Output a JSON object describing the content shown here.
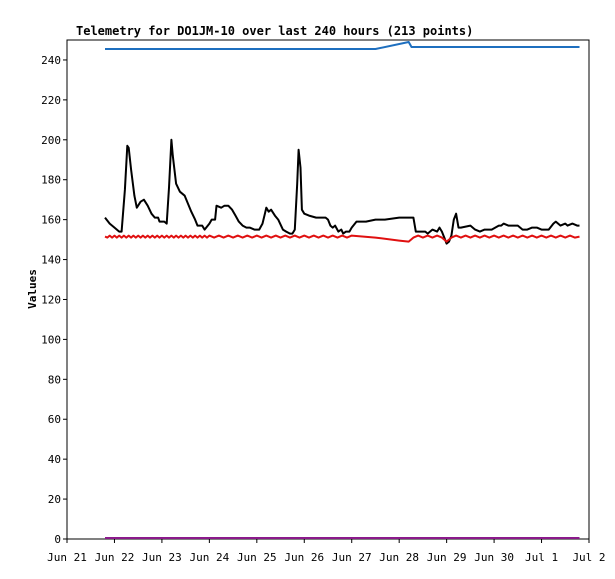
{
  "chart_data": {
    "type": "line",
    "title": "Telemetry for DO1JM-10 over last 240 hours (213 points)",
    "ylabel": "Values",
    "xlabel": "",
    "ylim": [
      0,
      250
    ],
    "xlim": [
      0,
      11
    ],
    "x_ticks": [
      {
        "x": 0,
        "label": "Jun 21"
      },
      {
        "x": 1,
        "label": "Jun 22"
      },
      {
        "x": 2,
        "label": "Jun 23"
      },
      {
        "x": 3,
        "label": "Jun 24"
      },
      {
        "x": 4,
        "label": "Jun 25"
      },
      {
        "x": 5,
        "label": "Jun 26"
      },
      {
        "x": 6,
        "label": "Jun 27"
      },
      {
        "x": 7,
        "label": "Jun 28"
      },
      {
        "x": 8,
        "label": "Jun 29"
      },
      {
        "x": 9,
        "label": "Jun 30"
      },
      {
        "x": 10,
        "label": "Jul 1"
      },
      {
        "x": 11,
        "label": "Jul 2"
      }
    ],
    "y_ticks": [
      0,
      20,
      40,
      60,
      80,
      100,
      120,
      140,
      160,
      180,
      200,
      220,
      240
    ],
    "grid": false,
    "series": [
      {
        "color": "#1e6fbf",
        "points": [
          [
            0.8,
            245.5
          ],
          [
            6.5,
            245.5
          ],
          [
            7.2,
            249
          ],
          [
            7.26,
            246.5
          ],
          [
            10.8,
            246.5
          ]
        ]
      },
      {
        "color": "#000000",
        "points": [
          [
            0.8,
            161
          ],
          [
            0.9,
            158
          ],
          [
            1.0,
            156
          ],
          [
            1.1,
            154
          ],
          [
            1.15,
            154
          ],
          [
            1.22,
            175
          ],
          [
            1.27,
            197
          ],
          [
            1.3,
            196
          ],
          [
            1.35,
            185
          ],
          [
            1.42,
            172
          ],
          [
            1.47,
            166
          ],
          [
            1.55,
            169
          ],
          [
            1.62,
            170
          ],
          [
            1.7,
            167
          ],
          [
            1.78,
            163
          ],
          [
            1.85,
            161
          ],
          [
            1.92,
            161
          ],
          [
            1.95,
            159
          ],
          [
            2.05,
            159
          ],
          [
            2.1,
            158
          ],
          [
            2.15,
            176
          ],
          [
            2.2,
            200
          ],
          [
            2.23,
            192
          ],
          [
            2.3,
            178
          ],
          [
            2.38,
            174
          ],
          [
            2.48,
            172
          ],
          [
            2.55,
            168
          ],
          [
            2.62,
            164
          ],
          [
            2.7,
            160
          ],
          [
            2.75,
            157
          ],
          [
            2.85,
            157
          ],
          [
            2.9,
            155
          ],
          [
            3.0,
            158
          ],
          [
            3.05,
            160
          ],
          [
            3.12,
            160
          ],
          [
            3.15,
            167
          ],
          [
            3.25,
            166
          ],
          [
            3.32,
            167
          ],
          [
            3.4,
            167
          ],
          [
            3.48,
            165
          ],
          [
            3.55,
            162
          ],
          [
            3.62,
            159
          ],
          [
            3.7,
            157
          ],
          [
            3.78,
            156
          ],
          [
            3.85,
            156
          ],
          [
            3.95,
            155
          ],
          [
            4.0,
            155
          ],
          [
            4.05,
            155
          ],
          [
            4.12,
            158
          ],
          [
            4.17,
            163
          ],
          [
            4.2,
            166
          ],
          [
            4.25,
            164
          ],
          [
            4.3,
            165
          ],
          [
            4.38,
            162
          ],
          [
            4.45,
            160
          ],
          [
            4.55,
            155
          ],
          [
            4.62,
            154
          ],
          [
            4.7,
            153
          ],
          [
            4.75,
            153
          ],
          [
            4.8,
            155
          ],
          [
            4.85,
            178
          ],
          [
            4.88,
            195
          ],
          [
            4.92,
            186
          ],
          [
            4.95,
            165
          ],
          [
            5.0,
            163
          ],
          [
            5.1,
            162
          ],
          [
            5.25,
            161
          ],
          [
            5.45,
            161
          ],
          [
            5.5,
            160
          ],
          [
            5.55,
            157
          ],
          [
            5.6,
            156
          ],
          [
            5.65,
            157
          ],
          [
            5.72,
            154
          ],
          [
            5.78,
            155
          ],
          [
            5.82,
            153
          ],
          [
            5.88,
            154
          ],
          [
            5.95,
            154
          ],
          [
            6.0,
            156
          ],
          [
            6.1,
            159
          ],
          [
            6.3,
            159
          ],
          [
            6.5,
            160
          ],
          [
            6.7,
            160
          ],
          [
            7.0,
            161
          ],
          [
            7.2,
            161
          ],
          [
            7.3,
            161
          ],
          [
            7.35,
            154
          ],
          [
            7.55,
            154
          ],
          [
            7.6,
            153
          ],
          [
            7.7,
            155
          ],
          [
            7.8,
            154
          ],
          [
            7.85,
            156
          ],
          [
            7.9,
            154
          ],
          [
            7.95,
            151
          ],
          [
            8.0,
            148
          ],
          [
            8.05,
            149
          ],
          [
            8.1,
            152
          ],
          [
            8.15,
            160
          ],
          [
            8.2,
            163
          ],
          [
            8.25,
            156
          ],
          [
            8.3,
            156
          ],
          [
            8.5,
            157
          ],
          [
            8.6,
            155
          ],
          [
            8.7,
            154
          ],
          [
            8.8,
            155
          ],
          [
            8.95,
            155
          ],
          [
            9.1,
            157
          ],
          [
            9.15,
            157
          ],
          [
            9.2,
            158
          ],
          [
            9.3,
            157
          ],
          [
            9.5,
            157
          ],
          [
            9.6,
            155
          ],
          [
            9.7,
            155
          ],
          [
            9.8,
            156
          ],
          [
            9.9,
            156
          ],
          [
            10.0,
            155
          ],
          [
            10.15,
            155
          ],
          [
            10.25,
            158
          ],
          [
            10.3,
            159
          ],
          [
            10.4,
            157
          ],
          [
            10.5,
            158
          ],
          [
            10.55,
            157
          ],
          [
            10.65,
            158
          ],
          [
            10.75,
            157
          ],
          [
            10.8,
            157
          ]
        ]
      },
      {
        "color": "#e01010",
        "points": [
          [
            0.8,
            151.5
          ],
          [
            0.85,
            151
          ],
          [
            0.9,
            152
          ],
          [
            0.95,
            151
          ],
          [
            1.0,
            152
          ],
          [
            1.05,
            151
          ],
          [
            1.1,
            152
          ],
          [
            1.15,
            151
          ],
          [
            1.2,
            152
          ],
          [
            1.25,
            151
          ],
          [
            1.3,
            152
          ],
          [
            1.35,
            151
          ],
          [
            1.4,
            152
          ],
          [
            1.45,
            151
          ],
          [
            1.5,
            152
          ],
          [
            1.55,
            151
          ],
          [
            1.6,
            152
          ],
          [
            1.65,
            151
          ],
          [
            1.7,
            152
          ],
          [
            1.75,
            151
          ],
          [
            1.8,
            152
          ],
          [
            1.85,
            151
          ],
          [
            1.9,
            152
          ],
          [
            1.95,
            151
          ],
          [
            2.0,
            152
          ],
          [
            2.05,
            151
          ],
          [
            2.1,
            152
          ],
          [
            2.15,
            151
          ],
          [
            2.2,
            152
          ],
          [
            2.25,
            151
          ],
          [
            2.3,
            152
          ],
          [
            2.35,
            151
          ],
          [
            2.4,
            152
          ],
          [
            2.45,
            151
          ],
          [
            2.5,
            152
          ],
          [
            2.55,
            151
          ],
          [
            2.6,
            152
          ],
          [
            2.65,
            151
          ],
          [
            2.7,
            152
          ],
          [
            2.75,
            151
          ],
          [
            2.8,
            152
          ],
          [
            2.85,
            151
          ],
          [
            2.9,
            152
          ],
          [
            2.95,
            151
          ],
          [
            3.0,
            152
          ],
          [
            3.1,
            151
          ],
          [
            3.2,
            152
          ],
          [
            3.3,
            151
          ],
          [
            3.4,
            152
          ],
          [
            3.5,
            151
          ],
          [
            3.6,
            152
          ],
          [
            3.7,
            151
          ],
          [
            3.8,
            152
          ],
          [
            3.9,
            151
          ],
          [
            4.0,
            152
          ],
          [
            4.1,
            151
          ],
          [
            4.2,
            152
          ],
          [
            4.3,
            151
          ],
          [
            4.4,
            152
          ],
          [
            4.5,
            151
          ],
          [
            4.6,
            152
          ],
          [
            4.7,
            151
          ],
          [
            4.8,
            152
          ],
          [
            4.9,
            151
          ],
          [
            5.0,
            152
          ],
          [
            5.1,
            151
          ],
          [
            5.2,
            152
          ],
          [
            5.3,
            151
          ],
          [
            5.4,
            152
          ],
          [
            5.5,
            151
          ],
          [
            5.6,
            152
          ],
          [
            5.7,
            151
          ],
          [
            5.8,
            152
          ],
          [
            5.9,
            151
          ],
          [
            6.0,
            152
          ],
          [
            6.5,
            151
          ],
          [
            7.0,
            149.5
          ],
          [
            7.2,
            149
          ],
          [
            7.3,
            151
          ],
          [
            7.4,
            152
          ],
          [
            7.5,
            151
          ],
          [
            7.6,
            152
          ],
          [
            7.7,
            151
          ],
          [
            7.8,
            152
          ],
          [
            7.9,
            151
          ],
          [
            8.0,
            149
          ],
          [
            8.1,
            151
          ],
          [
            8.2,
            152
          ],
          [
            8.3,
            151
          ],
          [
            8.4,
            152
          ],
          [
            8.5,
            151
          ],
          [
            8.6,
            152
          ],
          [
            8.7,
            151
          ],
          [
            8.8,
            152
          ],
          [
            8.9,
            151
          ],
          [
            9.0,
            152
          ],
          [
            9.1,
            151
          ],
          [
            9.2,
            152
          ],
          [
            9.3,
            151
          ],
          [
            9.4,
            152
          ],
          [
            9.5,
            151
          ],
          [
            9.6,
            152
          ],
          [
            9.7,
            151
          ],
          [
            9.8,
            152
          ],
          [
            9.9,
            151
          ],
          [
            10.0,
            152
          ],
          [
            10.1,
            151
          ],
          [
            10.2,
            152
          ],
          [
            10.3,
            151
          ],
          [
            10.4,
            152
          ],
          [
            10.5,
            151
          ],
          [
            10.6,
            152
          ],
          [
            10.7,
            151
          ],
          [
            10.8,
            151.5
          ]
        ]
      },
      {
        "color": "#8b1a8b",
        "points": [
          [
            0.8,
            0.5
          ],
          [
            10.8,
            0.5
          ]
        ]
      }
    ]
  }
}
